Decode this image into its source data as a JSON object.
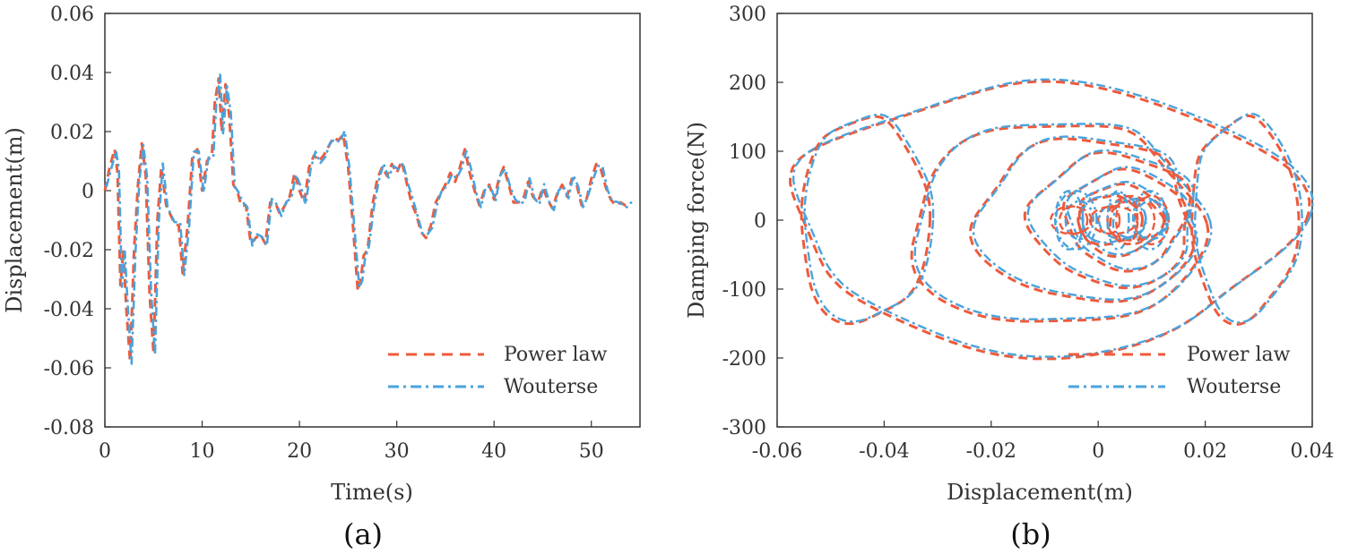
{
  "chart_data": [
    {
      "type": "line",
      "panel_label": "(a)",
      "xlabel": "Time(s)",
      "ylabel": "Displacement(m)",
      "xlim": [
        0,
        55
      ],
      "ylim": [
        -0.08,
        0.06
      ],
      "xticks": [
        "0",
        "10",
        "20",
        "30",
        "40",
        "50"
      ],
      "yticks": [
        "0.06",
        "0.04",
        "0.02",
        "0",
        "-0.02",
        "-0.04",
        "-0.06",
        "-0.08"
      ],
      "legend_position": "bottom-right",
      "series": [
        {
          "name": "Power law",
          "color": "#ee5a3c",
          "style": "dashed",
          "x": [
            0,
            0.5,
            1,
            1.3,
            1.6,
            1.9,
            2.2,
            2.6,
            3,
            3.4,
            3.8,
            4.2,
            4.6,
            5,
            5.4,
            5.8,
            6.3,
            7,
            7.6,
            8,
            8.5,
            9,
            9.5,
            10,
            10.5,
            11,
            11.3,
            11.7,
            12,
            12.4,
            12.8,
            13.2,
            13.6,
            14,
            14.5,
            15,
            15.5,
            16,
            16.5,
            17,
            17.5,
            18,
            18.5,
            19,
            19.5,
            20,
            20.5,
            21,
            21.5,
            22,
            22.5,
            23,
            23.5,
            24,
            24.5,
            25,
            25.5,
            26,
            26.3,
            26.6,
            27,
            27.5,
            28,
            28.5,
            29,
            29.5,
            30,
            30.5,
            31,
            31.5,
            32,
            32.5,
            33,
            33.5,
            34,
            34.5,
            35,
            35.5,
            36,
            36.5,
            37,
            37.5,
            38,
            38.5,
            39,
            39.5,
            40,
            40.5,
            41,
            41.5,
            42,
            42.5,
            43,
            43.5,
            44,
            44.5,
            45,
            45.5,
            46,
            46.5,
            47,
            47.5,
            48,
            48.5,
            49,
            49.5,
            50,
            50.5,
            51,
            51.5,
            52,
            52.5,
            53,
            53.5,
            54
          ],
          "y": [
            0,
            0.008,
            0.014,
            0.006,
            -0.032,
            -0.02,
            -0.04,
            -0.058,
            -0.02,
            0.002,
            0.016,
            0.005,
            -0.035,
            -0.055,
            -0.01,
            0.008,
            -0.005,
            -0.01,
            -0.012,
            -0.028,
            -0.012,
            0.012,
            0.014,
            0,
            0.01,
            0.012,
            0.03,
            0.038,
            0.02,
            0.036,
            0.025,
            0.002,
            0,
            -0.005,
            -0.005,
            -0.018,
            -0.016,
            -0.015,
            -0.018,
            -0.004,
            -0.004,
            -0.008,
            -0.005,
            -0.002,
            0.006,
            0,
            -0.004,
            0.008,
            0.012,
            0.01,
            0.012,
            0.015,
            0.018,
            0.017,
            0.019,
            0.008,
            -0.012,
            -0.034,
            -0.03,
            -0.022,
            -0.02,
            -0.005,
            0.004,
            0.008,
            0.005,
            0.009,
            0.006,
            0.01,
            0.003,
            -0.004,
            -0.008,
            -0.014,
            -0.016,
            -0.012,
            -0.004,
            -0.001,
            0.002,
            0.006,
            0.003,
            0.008,
            0.014,
            0.006,
            0,
            -0.005,
            0,
            0.002,
            -0.003,
            0.004,
            0.008,
            0.002,
            -0.004,
            -0.004,
            -0.003,
            0.003,
            -0.002,
            -0.004,
            0.001,
            -0.003,
            -0.006,
            -0.001,
            0.002,
            -0.002,
            0.004,
            0.002,
            -0.005,
            -0.003,
            0.004,
            0.009,
            0.007,
            0.001,
            -0.003,
            -0.005,
            -0.004,
            -0.005,
            -0.005
          ],
          "note_from_visual": "near-identical to Wouterse"
        },
        {
          "name": "Wouterse",
          "color": "#4aa3dc",
          "style": "dash-dot",
          "offset": 0.0012
        }
      ]
    },
    {
      "type": "line",
      "panel_label": "(b)",
      "xlabel": "Displacement(m)",
      "ylabel": "Damping force(N)",
      "xlim": [
        -0.06,
        0.04
      ],
      "ylim": [
        -300,
        300
      ],
      "xticks": [
        "-0.06",
        "-0.04",
        "-0.02",
        "0",
        "0.02",
        "0.04"
      ],
      "yticks": [
        "300",
        "200",
        "100",
        "0",
        "-100",
        "-200",
        "-300"
      ],
      "legend_position": "bottom-right",
      "series": [
        {
          "name": "Power law",
          "color": "#ee5a3c",
          "style": "dashed"
        },
        {
          "name": "Wouterse",
          "color": "#4aa3dc",
          "style": "dash-dot"
        }
      ],
      "loops": [
        {
          "cx": -0.01,
          "cy": 0,
          "rx": 0.047,
          "ry": 190,
          "rot": 0
        },
        {
          "cx": 0.027,
          "cy": 0,
          "rx": 0.01,
          "ry": 145,
          "rot": 0
        },
        {
          "cx": -0.044,
          "cy": 0,
          "rx": 0.012,
          "ry": 150,
          "rot": 0
        },
        {
          "cx": -0.008,
          "cy": -5,
          "rx": 0.027,
          "ry": 150,
          "rot": 0
        },
        {
          "cx": -0.002,
          "cy": 0,
          "rx": 0.02,
          "ry": 120,
          "rot": 0
        },
        {
          "cx": 0.003,
          "cy": 0,
          "rx": 0.015,
          "ry": 95,
          "rot": 0
        },
        {
          "cx": 0.005,
          "cy": 0,
          "rx": 0.011,
          "ry": 70,
          "rot": 0
        },
        {
          "cx": 0.004,
          "cy": 0,
          "rx": 0.008,
          "ry": 50,
          "rot": 0
        },
        {
          "cx": 0.002,
          "cy": 0,
          "rx": 0.006,
          "ry": 35,
          "rot": 0
        },
        {
          "cx": 0.007,
          "cy": 0,
          "rx": 0.005,
          "ry": 30,
          "rot": 0
        }
      ]
    }
  ],
  "colors": {
    "power_law": "#ee5a3c",
    "wouterse": "#4aa3dc"
  }
}
